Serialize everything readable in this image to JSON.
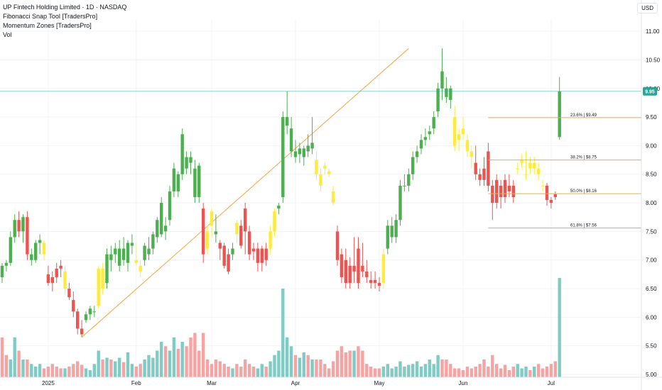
{
  "legend": {
    "title": "UP Fintech Holding Limited · 1D · NASDAQ",
    "line1": "Fibonacci Snap Tool [TradersPro]",
    "line2": "Momentum Zones [TradersPro]",
    "line3": "Vol"
  },
  "currency_label": "USD",
  "colors": {
    "up": "#4caf50",
    "down": "#ef5350",
    "neutral": "#ffeb3b",
    "vol_up": "#80cbc4",
    "vol_down": "#f5a3a3",
    "trend": "#f7a23b",
    "fib": "#e8b040",
    "last_price": "#26a69a",
    "grid": "#f0f3fa"
  },
  "chart_data": {
    "type": "candlestick",
    "y_range": [
      4.95,
      11.2
    ],
    "y_ticks": [
      "11.00",
      "10.50",
      "10.00",
      "9.50",
      "9.00",
      "8.50",
      "8.00",
      "7.50",
      "7.00",
      "6.50",
      "6.00",
      "5.50",
      "5.00"
    ],
    "x_ticks": [
      {
        "label": "2025",
        "index": 11
      },
      {
        "label": "Feb",
        "index": 32
      },
      {
        "label": "Mar",
        "index": 50
      },
      {
        "label": "Apr",
        "index": 70
      },
      {
        "label": "May",
        "index": 90
      },
      {
        "label": "Jun",
        "index": 110
      },
      {
        "label": "Jul",
        "index": 131
      }
    ],
    "last_price": "9.95",
    "last_price_value": 9.95,
    "trend_line": {
      "from": {
        "index": 19,
        "value": 5.65
      },
      "to": {
        "index": 97,
        "value": 10.7
      }
    },
    "fib_levels": [
      {
        "label": "23.6% | $9.49",
        "value": 9.49
      },
      {
        "label": "38.2% | $8.75",
        "value": 8.75
      },
      {
        "label": "50.0% | $8.16",
        "value": 8.16
      },
      {
        "label": "61.8% | $7.56",
        "value": 7.56
      }
    ],
    "fib_start_index": 116,
    "fib_end_index": 146,
    "candles": [
      [
        6.7,
        6.95,
        6.6,
        6.9,
        "g"
      ],
      [
        6.9,
        7.0,
        6.8,
        6.95,
        "g"
      ],
      [
        6.95,
        7.5,
        6.9,
        7.4,
        "g"
      ],
      [
        7.4,
        7.8,
        7.3,
        7.7,
        "g"
      ],
      [
        7.7,
        7.85,
        7.4,
        7.5,
        "r"
      ],
      [
        7.5,
        7.8,
        7.3,
        7.75,
        "g"
      ],
      [
        7.75,
        7.85,
        7.0,
        7.1,
        "r"
      ],
      [
        7.1,
        7.2,
        6.9,
        7.0,
        "g"
      ],
      [
        7.0,
        7.35,
        6.95,
        7.3,
        "g"
      ],
      [
        7.3,
        7.45,
        7.1,
        7.35,
        "g"
      ],
      [
        7.3,
        7.35,
        7.0,
        7.1,
        "y"
      ],
      [
        6.75,
        6.9,
        6.55,
        6.6,
        "r"
      ],
      [
        6.6,
        6.8,
        6.45,
        6.7,
        "r"
      ],
      [
        6.7,
        6.95,
        6.6,
        6.85,
        "r"
      ],
      [
        6.85,
        7.0,
        6.7,
        6.9,
        "r"
      ],
      [
        6.8,
        6.9,
        6.4,
        6.5,
        "y"
      ],
      [
        6.5,
        6.6,
        6.3,
        6.35,
        "r"
      ],
      [
        6.3,
        6.45,
        6.0,
        6.1,
        "r"
      ],
      [
        6.1,
        6.15,
        5.7,
        5.8,
        "r"
      ],
      [
        5.8,
        5.95,
        5.65,
        5.7,
        "r"
      ],
      [
        5.95,
        6.1,
        5.9,
        6.05,
        "g"
      ],
      [
        6.05,
        6.2,
        5.95,
        6.15,
        "g"
      ],
      [
        6.1,
        6.2,
        6.0,
        6.1,
        "g"
      ],
      [
        6.2,
        6.9,
        6.15,
        6.85,
        "y"
      ],
      [
        6.85,
        6.95,
        6.4,
        6.5,
        "y"
      ],
      [
        6.6,
        7.2,
        6.5,
        7.1,
        "g"
      ],
      [
        7.0,
        7.25,
        6.8,
        7.1,
        "g"
      ],
      [
        7.1,
        7.3,
        6.95,
        7.2,
        "g"
      ],
      [
        6.9,
        7.35,
        6.8,
        7.2,
        "g"
      ],
      [
        7.2,
        7.4,
        6.9,
        7.0,
        "g"
      ],
      [
        6.95,
        7.35,
        6.8,
        7.3,
        "g"
      ],
      [
        7.3,
        7.45,
        7.1,
        7.25,
        "g"
      ],
      [
        7.0,
        7.3,
        6.9,
        6.95,
        "y"
      ],
      [
        6.9,
        7.0,
        6.7,
        6.8,
        "y"
      ],
      [
        7.0,
        7.3,
        6.9,
        7.25,
        "g"
      ],
      [
        7.2,
        7.4,
        7.0,
        7.1,
        "g"
      ],
      [
        7.2,
        7.5,
        7.1,
        7.45,
        "g"
      ],
      [
        7.4,
        7.75,
        7.3,
        7.7,
        "g"
      ],
      [
        7.45,
        8.1,
        7.4,
        8.0,
        "g"
      ],
      [
        7.5,
        7.75,
        7.35,
        7.6,
        "g"
      ],
      [
        7.7,
        8.3,
        7.6,
        8.2,
        "g"
      ],
      [
        8.2,
        8.7,
        8.1,
        8.6,
        "g"
      ],
      [
        8.2,
        8.55,
        8.1,
        8.5,
        "g"
      ],
      [
        8.5,
        9.3,
        8.4,
        9.2,
        "g"
      ],
      [
        8.8,
        8.9,
        8.5,
        8.6,
        "g"
      ],
      [
        8.7,
        8.9,
        8.5,
        8.8,
        "g"
      ],
      [
        8.6,
        8.75,
        8.0,
        8.1,
        "g"
      ],
      [
        8.1,
        8.7,
        8.0,
        8.65,
        "g"
      ],
      [
        7.9,
        8.0,
        6.95,
        7.1,
        "r"
      ],
      [
        7.5,
        7.6,
        7.1,
        7.2,
        "y"
      ],
      [
        7.6,
        7.9,
        7.4,
        7.85,
        "y"
      ],
      [
        7.5,
        7.8,
        7.3,
        7.45,
        "g"
      ],
      [
        7.2,
        7.35,
        7.0,
        7.3,
        "r"
      ],
      [
        7.25,
        7.3,
        6.85,
        6.9,
        "r"
      ],
      [
        7.1,
        7.2,
        6.75,
        6.8,
        "r"
      ],
      [
        7.2,
        7.3,
        7.0,
        7.1,
        "g"
      ],
      [
        7.45,
        7.7,
        7.3,
        7.65,
        "y"
      ],
      [
        7.6,
        7.7,
        7.2,
        7.25,
        "r"
      ],
      [
        7.9,
        8.0,
        7.1,
        7.5,
        "r"
      ],
      [
        7.5,
        7.6,
        7.0,
        7.1,
        "r"
      ],
      [
        7.2,
        7.3,
        7.0,
        7.15,
        "r"
      ],
      [
        7.2,
        7.3,
        6.8,
        6.95,
        "r"
      ],
      [
        6.95,
        7.25,
        6.8,
        7.2,
        "r"
      ],
      [
        7.2,
        7.3,
        6.9,
        7.0,
        "r"
      ],
      [
        7.2,
        7.6,
        7.1,
        7.5,
        "y"
      ],
      [
        7.5,
        7.9,
        7.4,
        7.85,
        "y"
      ],
      [
        7.9,
        8.0,
        7.8,
        7.95,
        "g"
      ],
      [
        8.1,
        9.6,
        8.0,
        9.5,
        "g"
      ],
      [
        9.5,
        9.95,
        9.2,
        9.35,
        "g"
      ],
      [
        9.3,
        9.5,
        8.8,
        8.9,
        "g"
      ],
      [
        8.9,
        9.1,
        8.7,
        8.8,
        "g"
      ],
      [
        8.85,
        9.05,
        8.7,
        8.95,
        "g"
      ],
      [
        8.8,
        9.0,
        8.65,
        8.95,
        "g"
      ],
      [
        9.0,
        9.2,
        8.8,
        8.9,
        "g"
      ],
      [
        9.05,
        9.5,
        8.85,
        8.95,
        "g"
      ],
      [
        8.75,
        8.9,
        8.4,
        8.5,
        "y"
      ],
      [
        8.5,
        8.6,
        8.2,
        8.3,
        "y"
      ],
      [
        8.6,
        8.7,
        8.5,
        8.65,
        "y"
      ],
      [
        8.55,
        8.6,
        8.45,
        8.5,
        "y"
      ],
      [
        8.2,
        8.3,
        7.95,
        8.0,
        "y"
      ],
      [
        7.5,
        7.6,
        6.9,
        7.0,
        "r"
      ],
      [
        7.1,
        7.2,
        6.6,
        6.7,
        "r"
      ],
      [
        7.0,
        7.2,
        6.5,
        6.6,
        "r"
      ],
      [
        6.9,
        7.05,
        6.5,
        6.6,
        "r"
      ],
      [
        6.8,
        7.4,
        6.6,
        6.9,
        "r"
      ],
      [
        7.2,
        7.4,
        6.5,
        6.6,
        "r"
      ],
      [
        6.9,
        7.3,
        6.7,
        6.8,
        "r"
      ],
      [
        6.8,
        7.0,
        6.6,
        6.7,
        "r"
      ],
      [
        6.6,
        6.8,
        6.5,
        6.65,
        "r"
      ],
      [
        6.65,
        6.8,
        6.5,
        6.6,
        "r"
      ],
      [
        6.55,
        6.7,
        6.45,
        6.6,
        "r"
      ],
      [
        6.6,
        7.2,
        6.5,
        7.1,
        "y"
      ],
      [
        7.2,
        7.7,
        7.1,
        7.6,
        "g"
      ],
      [
        7.6,
        7.75,
        7.3,
        7.4,
        "g"
      ],
      [
        7.4,
        7.8,
        7.3,
        7.7,
        "g"
      ],
      [
        7.7,
        8.4,
        7.6,
        8.3,
        "g"
      ],
      [
        8.3,
        8.5,
        8.2,
        8.3,
        "g"
      ],
      [
        8.3,
        8.6,
        8.2,
        8.5,
        "g"
      ],
      [
        8.5,
        8.9,
        8.4,
        8.8,
        "g"
      ],
      [
        8.8,
        9.0,
        8.7,
        8.9,
        "g"
      ],
      [
        8.95,
        9.2,
        8.85,
        9.1,
        "g"
      ],
      [
        9.1,
        9.3,
        9.0,
        9.15,
        "g"
      ],
      [
        9.2,
        9.35,
        9.1,
        9.25,
        "g"
      ],
      [
        9.3,
        9.6,
        9.2,
        9.5,
        "g"
      ],
      [
        9.6,
        10.1,
        9.5,
        10.0,
        "g"
      ],
      [
        10.0,
        10.7,
        9.8,
        10.3,
        "g"
      ],
      [
        10.0,
        10.2,
        9.75,
        9.85,
        "g"
      ],
      [
        9.8,
        10.05,
        9.65,
        10.0,
        "g"
      ],
      [
        9.5,
        9.7,
        8.9,
        9.0,
        "y"
      ],
      [
        9.1,
        9.3,
        8.9,
        9.2,
        "y"
      ],
      [
        9.3,
        9.5,
        9.1,
        9.2,
        "y"
      ],
      [
        9.1,
        9.2,
        8.8,
        8.9,
        "y"
      ],
      [
        8.9,
        9.0,
        8.6,
        8.8,
        "y"
      ],
      [
        8.7,
        9.0,
        8.4,
        8.5,
        "r"
      ],
      [
        8.5,
        8.6,
        8.3,
        8.4,
        "r"
      ],
      [
        8.6,
        8.8,
        8.3,
        8.4,
        "r"
      ],
      [
        8.3,
        9.05,
        8.2,
        8.9,
        "r"
      ],
      [
        8.3,
        8.4,
        7.7,
        8.0,
        "r"
      ],
      [
        8.4,
        8.5,
        7.9,
        8.0,
        "r"
      ],
      [
        8.3,
        8.4,
        7.9,
        8.1,
        "r"
      ],
      [
        8.4,
        8.5,
        8.0,
        8.1,
        "r"
      ],
      [
        8.3,
        8.5,
        8.1,
        8.2,
        "r"
      ],
      [
        8.1,
        8.4,
        8.0,
        8.3,
        "r"
      ],
      [
        8.6,
        8.7,
        8.5,
        8.6,
        "y"
      ],
      [
        8.7,
        8.85,
        8.6,
        8.75,
        "y"
      ],
      [
        8.5,
        8.9,
        8.4,
        8.5,
        "y"
      ],
      [
        8.6,
        8.8,
        8.5,
        8.7,
        "y"
      ],
      [
        8.7,
        8.8,
        8.5,
        8.6,
        "y"
      ],
      [
        8.6,
        8.7,
        8.4,
        8.5,
        "y"
      ],
      [
        8.3,
        8.4,
        8.2,
        8.3,
        "y"
      ],
      [
        8.3,
        8.35,
        7.95,
        8.05,
        "r"
      ],
      [
        8.05,
        8.1,
        7.9,
        8.0,
        "r"
      ],
      [
        8.15,
        8.2,
        8.05,
        8.1,
        "r"
      ],
      [
        9.15,
        10.2,
        9.1,
        9.95,
        "g"
      ]
    ],
    "volume_y_range": [
      0,
      1.0
    ],
    "volumes": [
      [
        0.45,
        "r"
      ],
      [
        0.25,
        "r"
      ],
      [
        0.2,
        "g"
      ],
      [
        0.45,
        "g"
      ],
      [
        0.3,
        "r"
      ],
      [
        0.2,
        "g"
      ],
      [
        0.2,
        "r"
      ],
      [
        0.15,
        "g"
      ],
      [
        0.12,
        "g"
      ],
      [
        0.15,
        "g"
      ],
      [
        0.1,
        "r"
      ],
      [
        0.12,
        "r"
      ],
      [
        0.15,
        "r"
      ],
      [
        0.12,
        "r"
      ],
      [
        0.1,
        "r"
      ],
      [
        0.1,
        "g"
      ],
      [
        0.12,
        "r"
      ],
      [
        0.15,
        "r"
      ],
      [
        0.18,
        "r"
      ],
      [
        0.14,
        "r"
      ],
      [
        0.1,
        "g"
      ],
      [
        0.08,
        "g"
      ],
      [
        0.15,
        "g"
      ],
      [
        0.3,
        "g"
      ],
      [
        0.2,
        "r"
      ],
      [
        0.22,
        "g"
      ],
      [
        0.2,
        "r"
      ],
      [
        0.18,
        "g"
      ],
      [
        0.22,
        "g"
      ],
      [
        0.17,
        "r"
      ],
      [
        0.28,
        "g"
      ],
      [
        0.15,
        "g"
      ],
      [
        0.12,
        "r"
      ],
      [
        0.15,
        "r"
      ],
      [
        0.2,
        "g"
      ],
      [
        0.25,
        "g"
      ],
      [
        0.22,
        "g"
      ],
      [
        0.3,
        "g"
      ],
      [
        0.4,
        "g"
      ],
      [
        0.35,
        "r"
      ],
      [
        0.3,
        "g"
      ],
      [
        0.45,
        "g"
      ],
      [
        0.32,
        "r"
      ],
      [
        0.4,
        "g"
      ],
      [
        0.35,
        "r"
      ],
      [
        0.45,
        "r"
      ],
      [
        0.5,
        "r"
      ],
      [
        0.3,
        "r"
      ],
      [
        0.5,
        "r"
      ],
      [
        0.2,
        "r"
      ],
      [
        0.15,
        "r"
      ],
      [
        0.2,
        "r"
      ],
      [
        0.18,
        "r"
      ],
      [
        0.15,
        "r"
      ],
      [
        0.12,
        "r"
      ],
      [
        0.1,
        "g"
      ],
      [
        0.15,
        "r"
      ],
      [
        0.12,
        "r"
      ],
      [
        0.2,
        "r"
      ],
      [
        0.15,
        "r"
      ],
      [
        0.12,
        "r"
      ],
      [
        0.1,
        "g"
      ],
      [
        0.15,
        "g"
      ],
      [
        0.12,
        "r"
      ],
      [
        0.18,
        "g"
      ],
      [
        0.25,
        "g"
      ],
      [
        0.3,
        "g"
      ],
      [
        1.0,
        "g"
      ],
      [
        0.45,
        "g"
      ],
      [
        0.35,
        "g"
      ],
      [
        0.25,
        "r"
      ],
      [
        0.22,
        "g"
      ],
      [
        0.28,
        "g"
      ],
      [
        0.25,
        "r"
      ],
      [
        0.2,
        "g"
      ],
      [
        0.2,
        "r"
      ],
      [
        0.2,
        "r"
      ],
      [
        0.15,
        "r"
      ],
      [
        0.1,
        "r"
      ],
      [
        0.18,
        "r"
      ],
      [
        0.3,
        "r"
      ],
      [
        0.35,
        "r"
      ],
      [
        0.28,
        "r"
      ],
      [
        0.3,
        "r"
      ],
      [
        0.3,
        "g"
      ],
      [
        0.35,
        "r"
      ],
      [
        0.3,
        "r"
      ],
      [
        0.15,
        "r"
      ],
      [
        0.12,
        "r"
      ],
      [
        0.1,
        "r"
      ],
      [
        0.1,
        "r"
      ],
      [
        0.12,
        "g"
      ],
      [
        0.15,
        "g"
      ],
      [
        0.1,
        "g"
      ],
      [
        0.12,
        "g"
      ],
      [
        0.18,
        "g"
      ],
      [
        0.12,
        "g"
      ],
      [
        0.14,
        "g"
      ],
      [
        0.15,
        "g"
      ],
      [
        0.18,
        "g"
      ],
      [
        0.12,
        "g"
      ],
      [
        0.15,
        "g"
      ],
      [
        0.2,
        "g"
      ],
      [
        0.15,
        "g"
      ],
      [
        0.25,
        "g"
      ],
      [
        0.2,
        "r"
      ],
      [
        0.2,
        "r"
      ],
      [
        0.15,
        "r"
      ],
      [
        0.1,
        "r"
      ],
      [
        0.1,
        "r"
      ],
      [
        0.08,
        "r"
      ],
      [
        0.12,
        "r"
      ],
      [
        0.1,
        "r"
      ],
      [
        0.12,
        "r"
      ],
      [
        0.15,
        "r"
      ],
      [
        0.2,
        "r"
      ],
      [
        0.12,
        "r"
      ],
      [
        0.25,
        "r"
      ],
      [
        0.15,
        "r"
      ],
      [
        0.1,
        "r"
      ],
      [
        0.14,
        "r"
      ],
      [
        0.08,
        "r"
      ],
      [
        0.12,
        "r"
      ],
      [
        0.15,
        "g"
      ],
      [
        0.1,
        "g"
      ],
      [
        0.12,
        "g"
      ],
      [
        0.08,
        "r"
      ],
      [
        0.12,
        "g"
      ],
      [
        0.15,
        "r"
      ],
      [
        0.1,
        "r"
      ],
      [
        0.12,
        "r"
      ],
      [
        0.15,
        "r"
      ],
      [
        0.18,
        "r"
      ],
      [
        1.3,
        "g"
      ]
    ]
  }
}
